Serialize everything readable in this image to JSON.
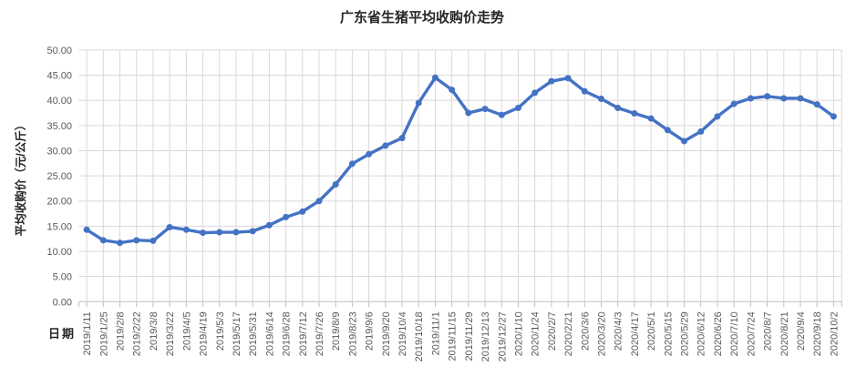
{
  "chart_data": {
    "type": "line",
    "title": "广东省生猪平均收购价走势",
    "xlabel": "日期",
    "ylabel": "平均收购价（元/公斤）",
    "legend": "none",
    "grid": true,
    "marker": "circle",
    "series_name": "平均收购价",
    "series_color": "#4472c4",
    "gridline_color": "#d9d9d9",
    "axis_color": "#bfbfbf",
    "tick_label_color": "#595959",
    "ylim": [
      0,
      50
    ],
    "ytick_step": 5,
    "ytick_labels": [
      "0.00",
      "5.00",
      "10.00",
      "15.00",
      "20.00",
      "25.00",
      "30.00",
      "35.00",
      "40.00",
      "45.00",
      "50.00"
    ],
    "categories": [
      "2019/1/11",
      "2019/1/25",
      "2019/2/8",
      "2019/2/22",
      "2019/3/8",
      "2019/3/22",
      "2019/4/5",
      "2019/4/19",
      "2019/5/3",
      "2019/5/17",
      "2019/5/31",
      "2019/6/14",
      "2019/6/28",
      "2019/7/12",
      "2019/7/26",
      "2019/8/9",
      "2019/8/23",
      "2019/9/6",
      "2019/9/20",
      "2019/10/4",
      "2019/10/18",
      "2019/11/1",
      "2019/11/15",
      "2019/11/29",
      "2019/12/13",
      "2019/12/27",
      "2020/1/10",
      "2020/1/24",
      "2020/2/7",
      "2020/2/21",
      "2020/3/6",
      "2020/3/20",
      "2020/4/3",
      "2020/4/17",
      "2020/5/1",
      "2020/5/15",
      "2020/5/29",
      "2020/6/12",
      "2020/6/26",
      "2020/7/10",
      "2020/7/24",
      "2020/8/7",
      "2020/8/21",
      "2020/9/4",
      "2020/9/18",
      "2020/10/2"
    ],
    "values": [
      14.3,
      12.2,
      11.7,
      12.2,
      12.1,
      14.8,
      14.3,
      13.7,
      13.8,
      13.8,
      14.0,
      15.2,
      16.8,
      17.9,
      20.0,
      23.3,
      27.4,
      29.3,
      31.0,
      32.5,
      39.5,
      44.5,
      42.1,
      37.5,
      38.3,
      37.1,
      38.5,
      41.5,
      43.8,
      44.4,
      41.8,
      40.3,
      38.5,
      37.4,
      36.4,
      34.1,
      31.9,
      33.8,
      36.8,
      39.3,
      40.4,
      40.8,
      40.4,
      40.4,
      39.2,
      36.8
    ]
  }
}
